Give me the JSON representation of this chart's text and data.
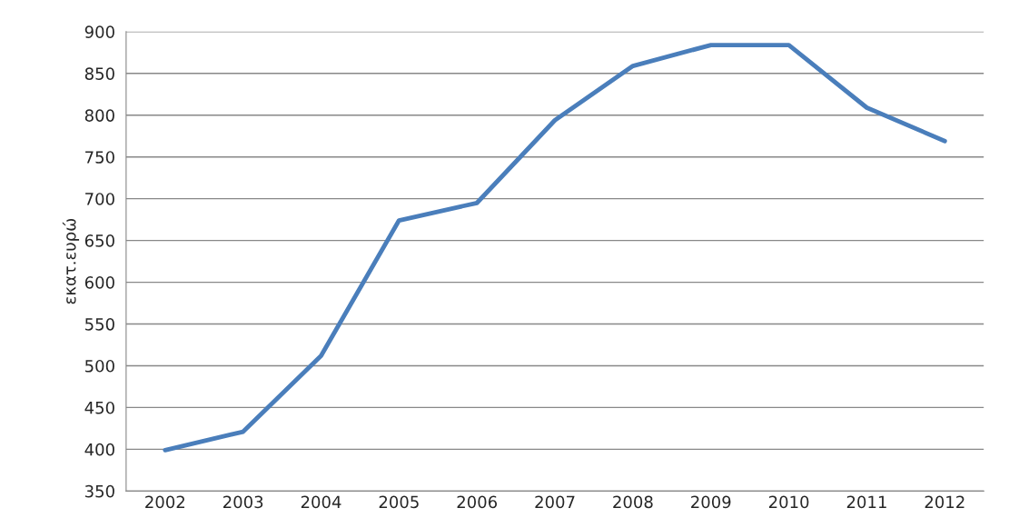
{
  "chart_data": {
    "type": "line",
    "ylabel": "εκατ.ευρώ",
    "categories": [
      "2002",
      "2003",
      "2004",
      "2005",
      "2006",
      "2007",
      "2008",
      "2009",
      "2010",
      "2011",
      "2012"
    ],
    "series": [
      {
        "color": "#4a7ebb",
        "values": [
          399,
          421,
          512,
          674,
          695,
          794,
          859,
          884,
          884,
          809,
          769
        ]
      }
    ],
    "ylim": [
      350,
      900
    ],
    "yticks": [
      350,
      400,
      450,
      500,
      550,
      600,
      650,
      700,
      750,
      800,
      850,
      900
    ],
    "grid": "y",
    "legend": false,
    "marker": "none",
    "line_style": "solid"
  }
}
